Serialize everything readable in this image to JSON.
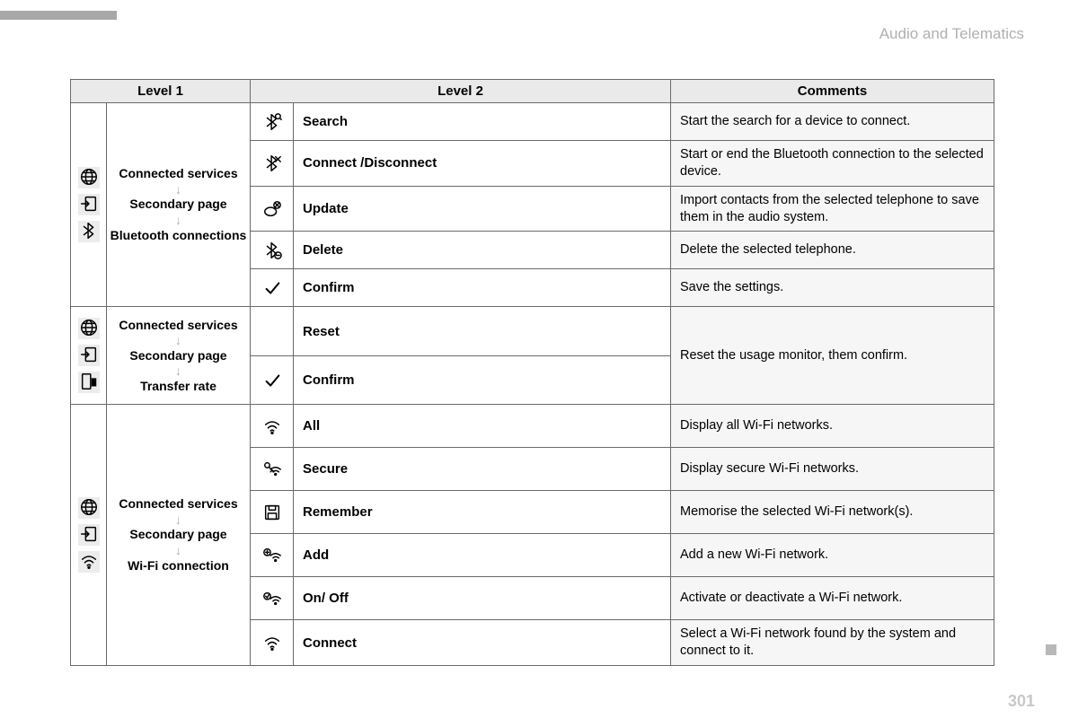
{
  "header": "Audio and Telematics",
  "pageNumber": "301",
  "columns": {
    "level1": "Level 1",
    "level2": "Level 2",
    "comments": "Comments"
  },
  "groups": [
    {
      "nav": [
        "Connected services",
        "Secondary page",
        "Bluetooth connections"
      ],
      "navIcons": [
        "globe",
        "enter",
        "bluetooth"
      ],
      "rows": [
        {
          "icon": "bt-search",
          "action": "Search",
          "comment": "Start the search for a device to connect."
        },
        {
          "icon": "bt-x",
          "action": "Connect /Disconnect",
          "comment": "Start or end the Bluetooth connection to the selected device."
        },
        {
          "icon": "update",
          "action": "Update",
          "comment": "Import contacts from the selected telephone to save them in the audio system."
        },
        {
          "icon": "bt-del",
          "action": "Delete",
          "comment": "Delete the selected telephone."
        },
        {
          "icon": "check",
          "action": "Confirm",
          "comment": "Save the settings."
        }
      ]
    },
    {
      "nav": [
        "Connected services",
        "Secondary page",
        "Transfer rate"
      ],
      "navIcons": [
        "globe",
        "enter",
        "transfer"
      ],
      "rows": [
        {
          "icon": "",
          "action": "Reset",
          "comment": "Reset the usage monitor, them confirm.",
          "mergeComment": 2
        },
        {
          "icon": "check",
          "action": "Confirm"
        }
      ]
    },
    {
      "nav": [
        "Connected services",
        "Secondary page",
        "Wi-Fi connection"
      ],
      "navIcons": [
        "globe",
        "enter",
        "wifi"
      ],
      "rows": [
        {
          "icon": "wifi",
          "action": "All",
          "comment": "Display all Wi-Fi networks."
        },
        {
          "icon": "wifi-key",
          "action": "Secure",
          "comment": "Display secure Wi-Fi networks."
        },
        {
          "icon": "save",
          "action": "Remember",
          "comment": "Memorise the selected Wi-Fi network(s)."
        },
        {
          "icon": "wifi-plus",
          "action": "Add",
          "comment": "Add a new Wi-Fi network."
        },
        {
          "icon": "wifi-chk",
          "action": "On/ Off",
          "comment": "Activate or deactivate a Wi-Fi network."
        },
        {
          "icon": "wifi",
          "action": "Connect",
          "comment": "Select a Wi-Fi network found by the system and connect to it."
        }
      ]
    }
  ]
}
